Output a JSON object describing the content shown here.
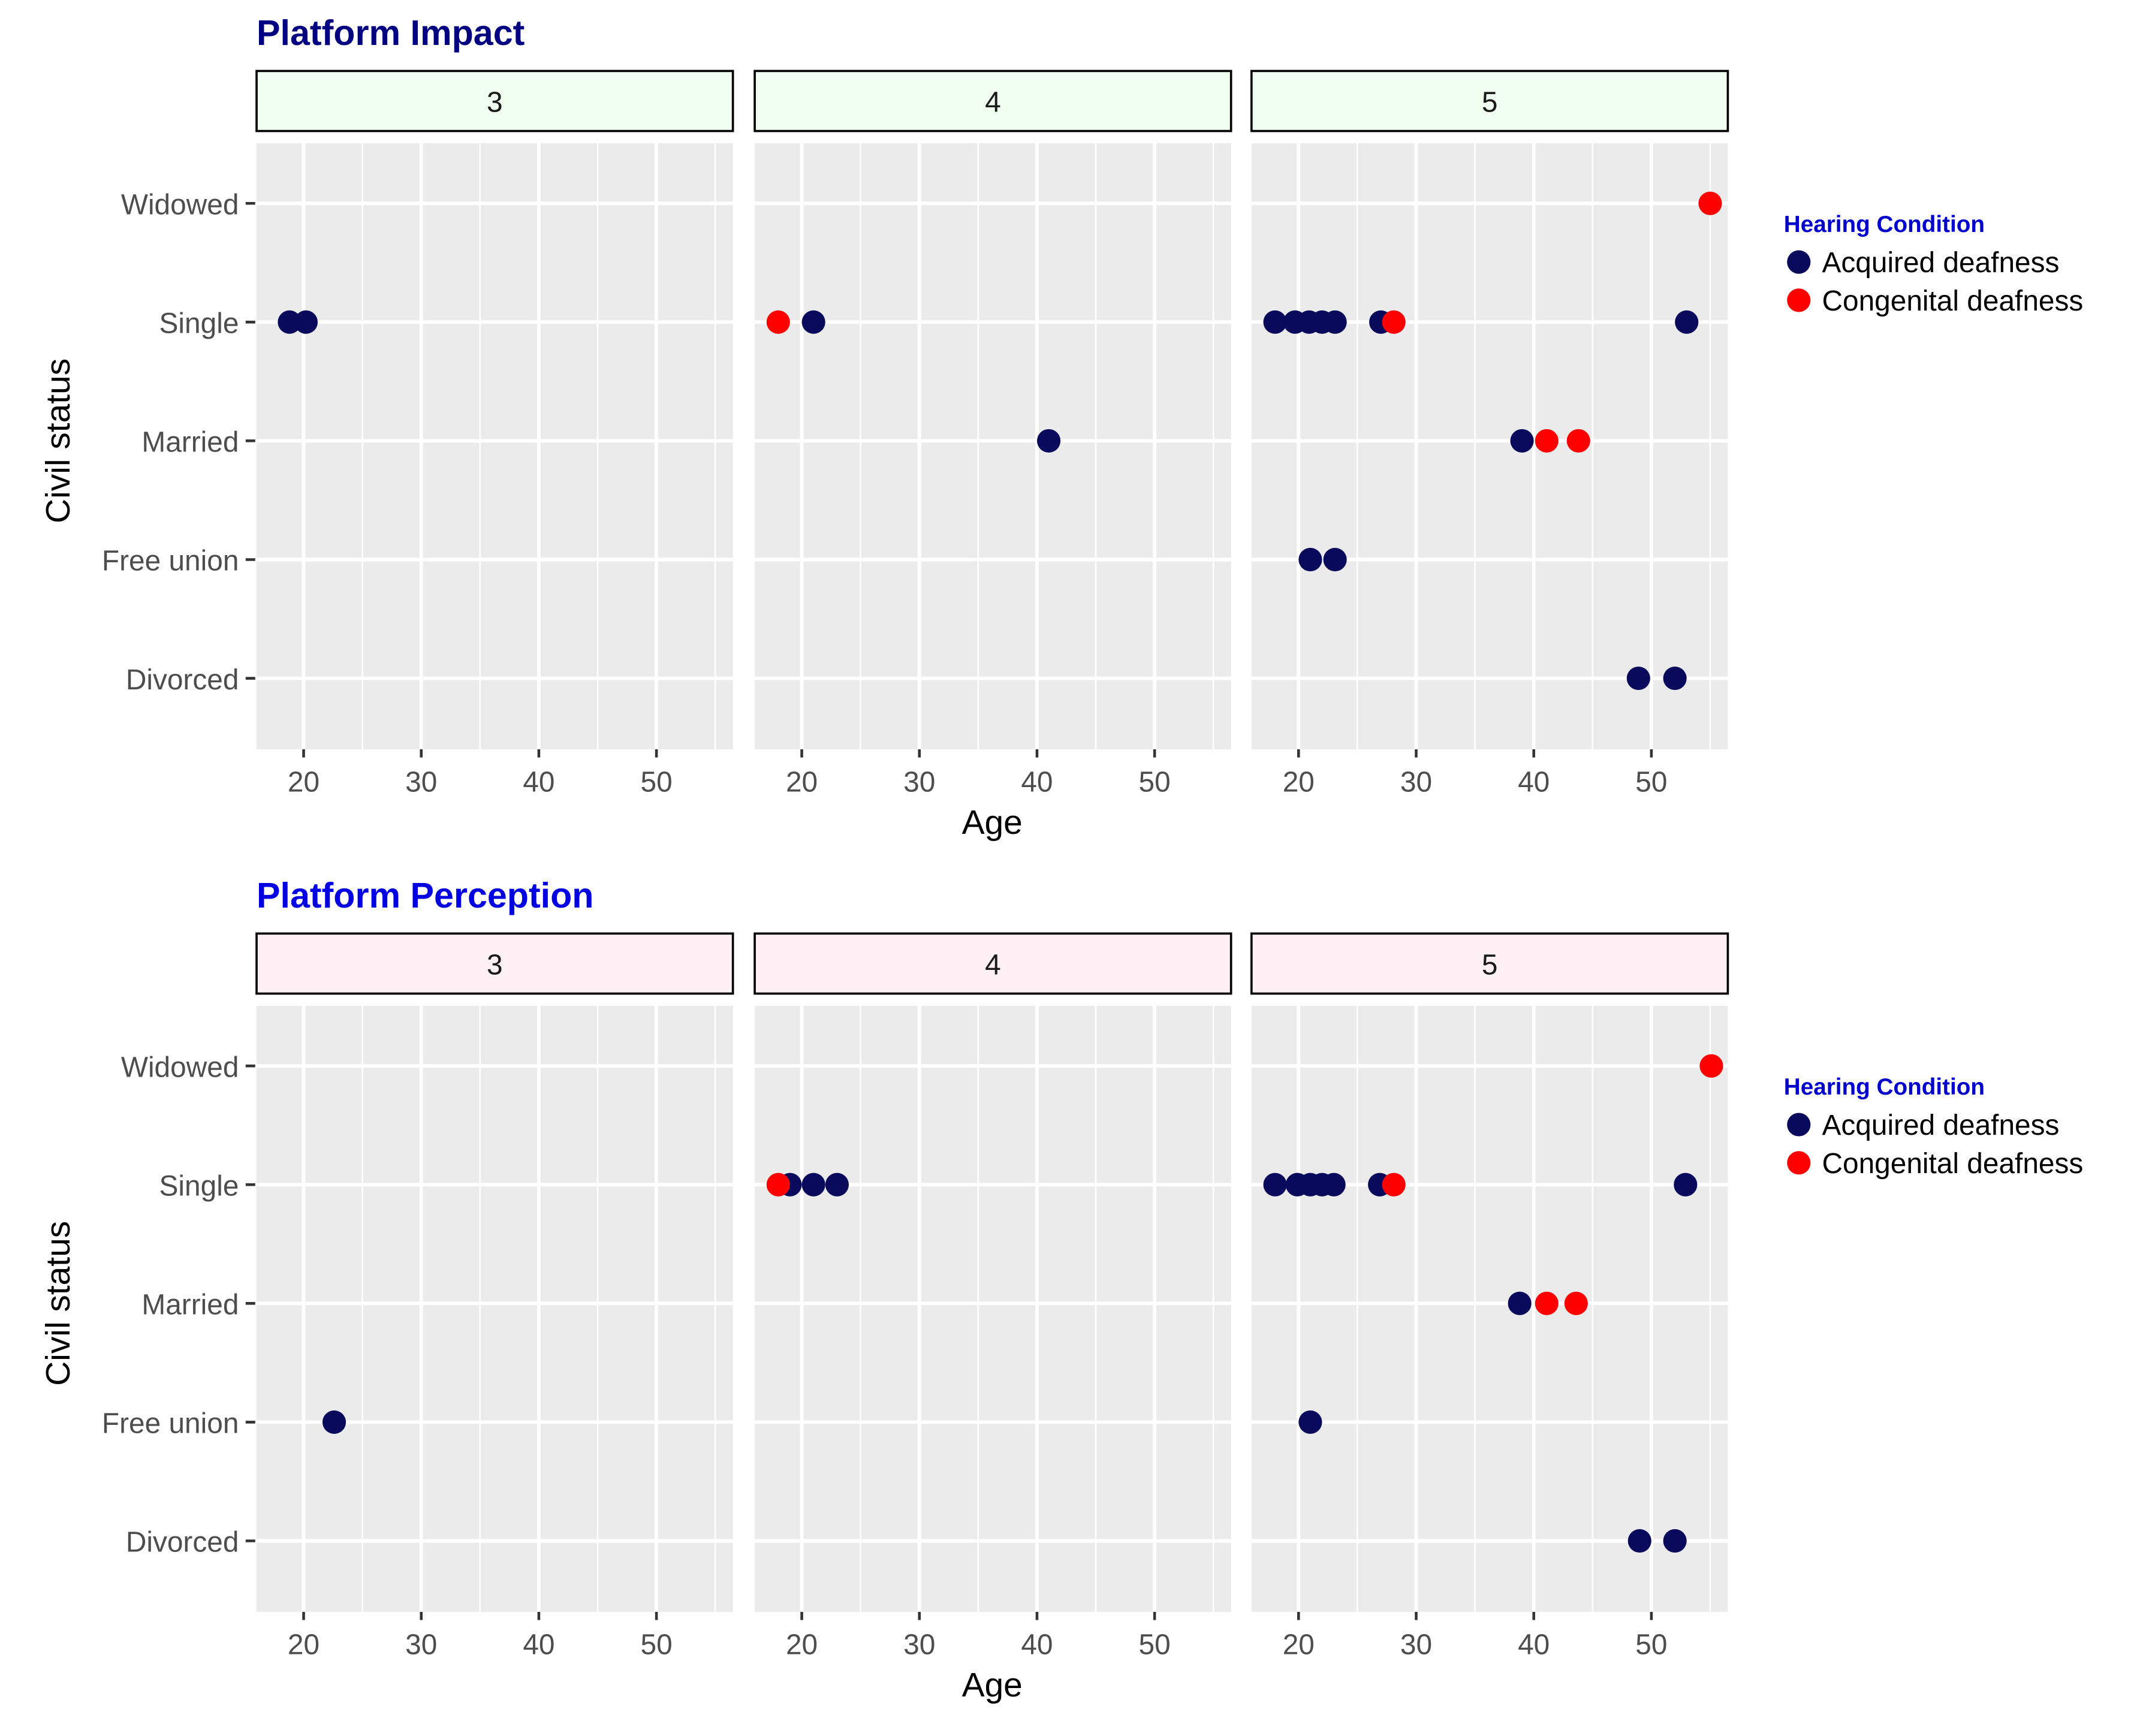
{
  "colors": {
    "acquired": "#0a0a5c",
    "congenital": "#ff0000",
    "panel_bg": "#ebebeb",
    "grid": "#ffffff",
    "strip_impact": "#f0fff0",
    "strip_perception": "#fff0f5",
    "title_impact": "#000080",
    "title_perception": "#0000e0",
    "legend_title": "#0000cd",
    "axis_text": "#4d4d4d"
  },
  "legend": {
    "title": "Hearing Condition",
    "items": [
      {
        "label": "Acquired deafness",
        "color_key": "acquired"
      },
      {
        "label": "Congenital deafness",
        "color_key": "congenital"
      }
    ]
  },
  "chart_data": [
    {
      "type": "scatter",
      "title": "Platform Impact",
      "xlabel": "Age",
      "ylabel": "Civil status",
      "categories_y": [
        "Divorced",
        "Free union",
        "Married",
        "Single",
        "Widowed"
      ],
      "xlim": [
        16,
        56.5
      ],
      "xticks": [
        20,
        30,
        40,
        50
      ],
      "facets": [
        {
          "label": "3",
          "points": [
            {
              "x": 18.8,
              "y": "Single",
              "group": "acquired"
            },
            {
              "x": 20.2,
              "y": "Single",
              "group": "acquired"
            }
          ]
        },
        {
          "label": "4",
          "points": [
            {
              "x": 18,
              "y": "Single",
              "group": "congenital"
            },
            {
              "x": 21,
              "y": "Single",
              "group": "acquired"
            },
            {
              "x": 41,
              "y": "Married",
              "group": "acquired"
            }
          ]
        },
        {
          "label": "5",
          "points": [
            {
              "x": 18,
              "y": "Single",
              "group": "acquired"
            },
            {
              "x": 19.7,
              "y": "Single",
              "group": "acquired"
            },
            {
              "x": 20.9,
              "y": "Single",
              "group": "acquired"
            },
            {
              "x": 22,
              "y": "Single",
              "group": "acquired"
            },
            {
              "x": 23.1,
              "y": "Single",
              "group": "acquired"
            },
            {
              "x": 27,
              "y": "Single",
              "group": "acquired"
            },
            {
              "x": 28.1,
              "y": "Single",
              "group": "congenital"
            },
            {
              "x": 53,
              "y": "Single",
              "group": "acquired"
            },
            {
              "x": 55,
              "y": "Widowed",
              "group": "congenital"
            },
            {
              "x": 39,
              "y": "Married",
              "group": "acquired"
            },
            {
              "x": 41.1,
              "y": "Married",
              "group": "congenital"
            },
            {
              "x": 43.8,
              "y": "Married",
              "group": "congenital"
            },
            {
              "x": 21,
              "y": "Free union",
              "group": "acquired"
            },
            {
              "x": 23.1,
              "y": "Free union",
              "group": "acquired"
            },
            {
              "x": 48.9,
              "y": "Divorced",
              "group": "acquired"
            },
            {
              "x": 52,
              "y": "Divorced",
              "group": "acquired"
            }
          ]
        }
      ]
    },
    {
      "type": "scatter",
      "title": "Platform Perception",
      "xlabel": "Age",
      "ylabel": "Civil status",
      "categories_y": [
        "Divorced",
        "Free union",
        "Married",
        "Single",
        "Widowed"
      ],
      "xlim": [
        16,
        56.5
      ],
      "xticks": [
        20,
        30,
        40,
        50
      ],
      "facets": [
        {
          "label": "3",
          "points": [
            {
              "x": 22.6,
              "y": "Free union",
              "group": "acquired"
            }
          ]
        },
        {
          "label": "4",
          "points": [
            {
              "x": 19,
              "y": "Single",
              "group": "acquired"
            },
            {
              "x": 21,
              "y": "Single",
              "group": "acquired"
            },
            {
              "x": 23,
              "y": "Single",
              "group": "acquired"
            },
            {
              "x": 18,
              "y": "Single",
              "group": "congenital"
            }
          ]
        },
        {
          "label": "5",
          "points": [
            {
              "x": 18,
              "y": "Single",
              "group": "acquired"
            },
            {
              "x": 19.9,
              "y": "Single",
              "group": "acquired"
            },
            {
              "x": 21,
              "y": "Single",
              "group": "acquired"
            },
            {
              "x": 22,
              "y": "Single",
              "group": "acquired"
            },
            {
              "x": 23,
              "y": "Single",
              "group": "acquired"
            },
            {
              "x": 26.9,
              "y": "Single",
              "group": "acquired"
            },
            {
              "x": 28.1,
              "y": "Single",
              "group": "congenital"
            },
            {
              "x": 52.9,
              "y": "Single",
              "group": "acquired"
            },
            {
              "x": 55.1,
              "y": "Widowed",
              "group": "congenital"
            },
            {
              "x": 38.8,
              "y": "Married",
              "group": "acquired"
            },
            {
              "x": 41.1,
              "y": "Married",
              "group": "congenital"
            },
            {
              "x": 43.6,
              "y": "Married",
              "group": "congenital"
            },
            {
              "x": 21,
              "y": "Free union",
              "group": "acquired"
            },
            {
              "x": 49,
              "y": "Divorced",
              "group": "acquired"
            },
            {
              "x": 52,
              "y": "Divorced",
              "group": "acquired"
            }
          ]
        }
      ]
    }
  ]
}
